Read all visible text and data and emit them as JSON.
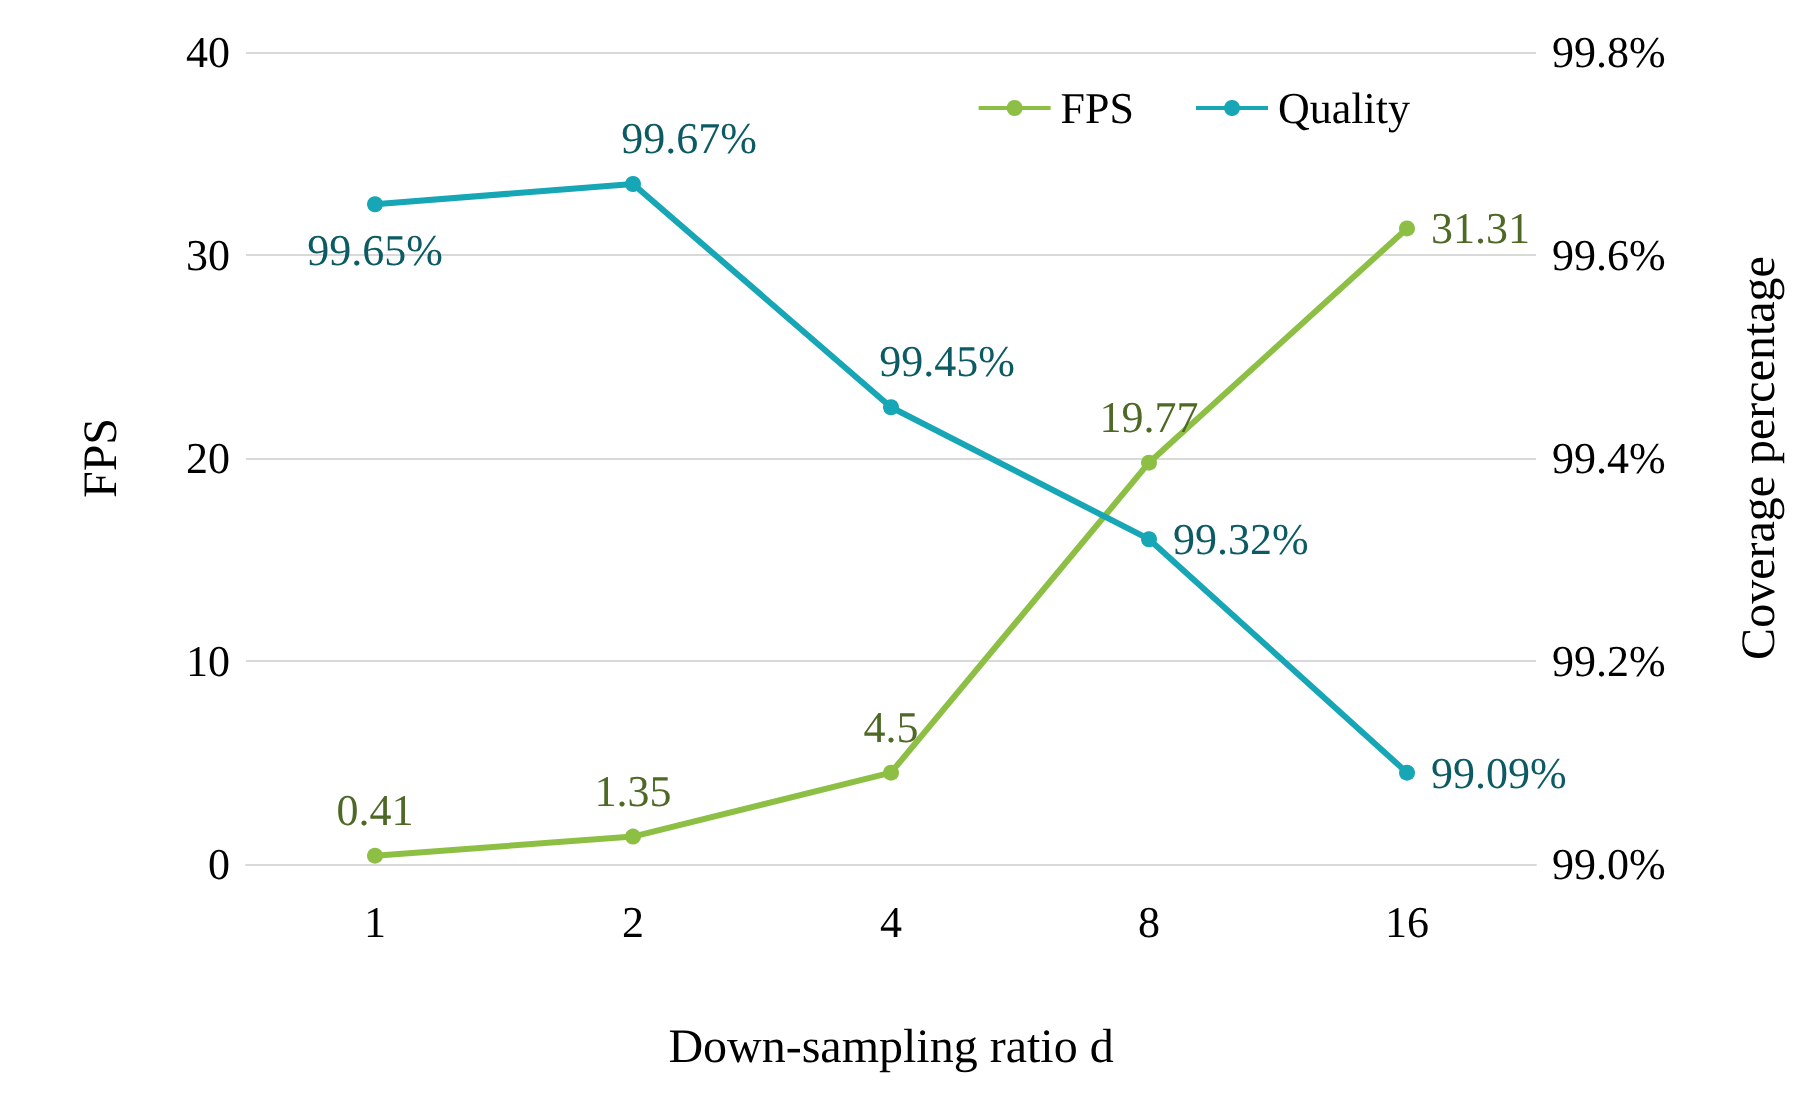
{
  "chart_data": {
    "type": "line",
    "xlabel": "Down-sampling ratio d",
    "ylabel": "FPS",
    "y2label": "Coverage percentage",
    "categories": [
      "1",
      "2",
      "4",
      "8",
      "16"
    ],
    "series": [
      {
        "name": "FPS",
        "color": "#8dbf45",
        "values": [
          0.41,
          1.35,
          4.5,
          19.77,
          31.31
        ],
        "value_labels": [
          "0.41",
          "1.35",
          "4.5",
          "19.77",
          "31.31"
        ]
      },
      {
        "name": "Quality",
        "color": "#16a6b6",
        "axis": "y2",
        "values": [
          99.65,
          99.67,
          99.45,
          99.32,
          99.09
        ],
        "value_labels": [
          "99.65%",
          "99.67%",
          "99.45%",
          "99.32%",
          "99.09%"
        ]
      }
    ],
    "ylim": [
      0,
      40
    ],
    "yticks": [
      0,
      10,
      20,
      30,
      40
    ],
    "y2lim": [
      99.0,
      99.8
    ],
    "y2ticks": [
      {
        "value": 99.0,
        "label": "99.0%"
      },
      {
        "value": 99.2,
        "label": "99.2%"
      },
      {
        "value": 99.4,
        "label": "99.4%"
      },
      {
        "value": 99.6,
        "label": "99.6%"
      },
      {
        "value": 99.8,
        "label": "99.8%"
      }
    ],
    "grid": "y",
    "legend": "top right",
    "marker": "circle"
  }
}
